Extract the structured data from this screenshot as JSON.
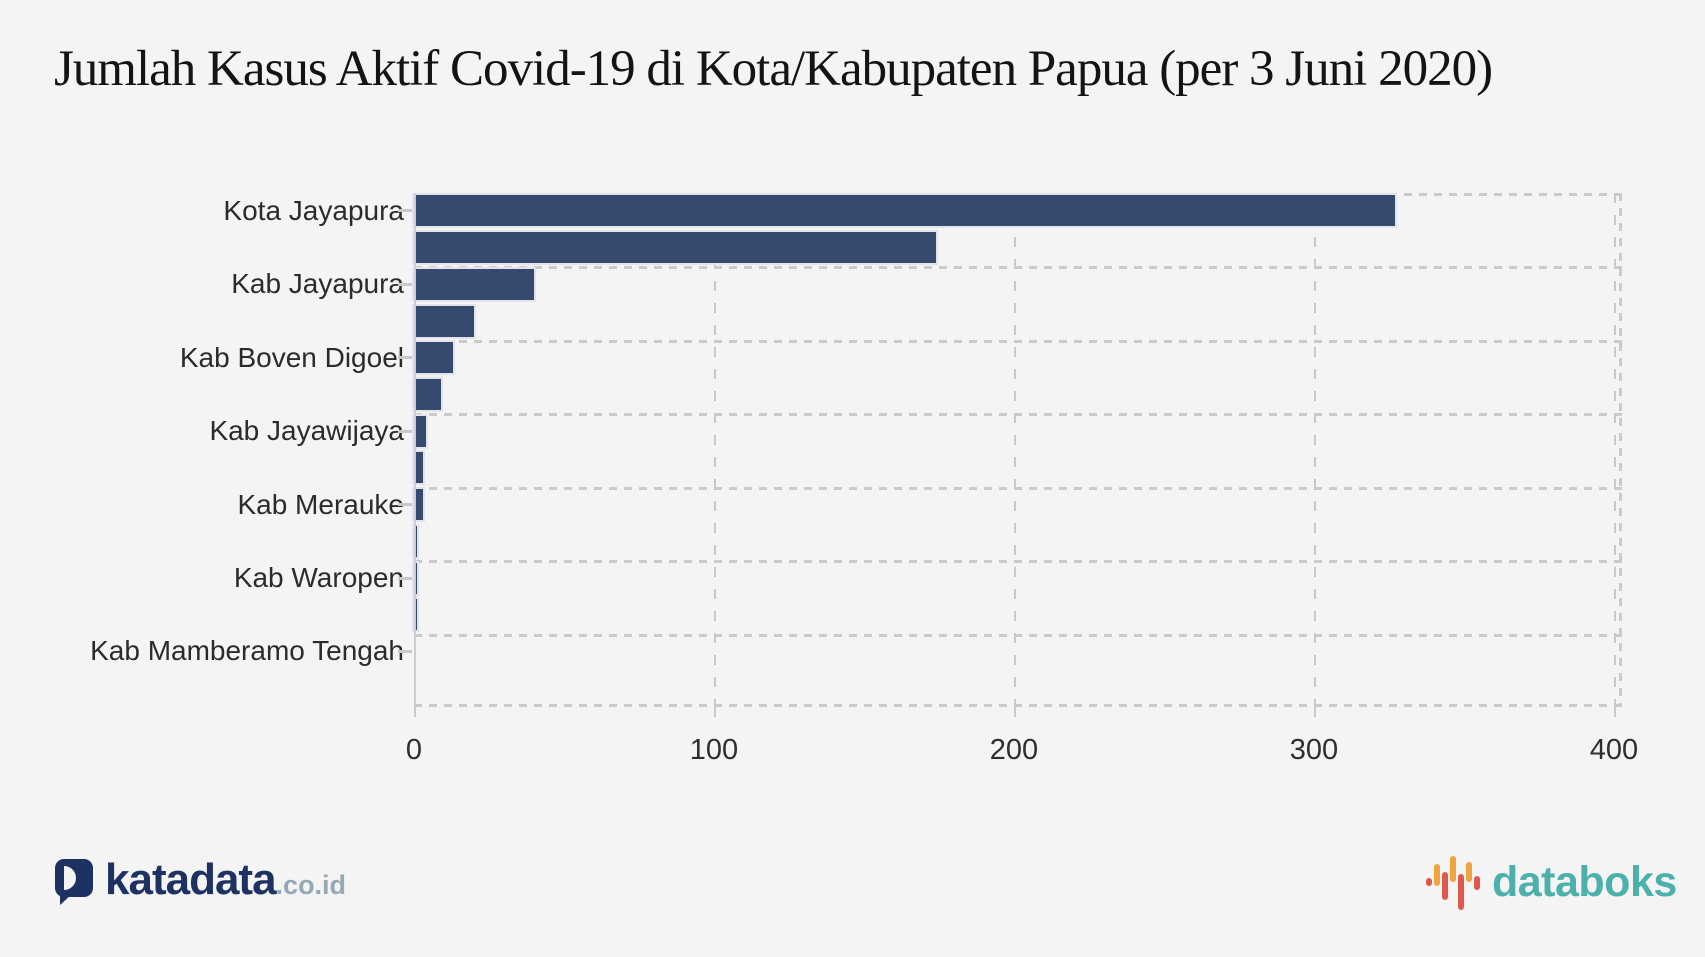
{
  "title": "Jumlah Kasus Aktif Covid-19 di Kota/Kabupaten Papua (per 3 Juni 2020)",
  "chart_data": {
    "type": "bar",
    "orientation": "horizontal",
    "categories": [
      "Kota Jayapura",
      "",
      "Kab Jayapura",
      "",
      "Kab Boven Digoel",
      "",
      "Kab Jayawijaya",
      "",
      "Kab Merauke",
      "",
      "Kab Waropen",
      "",
      "Kab Mamberamo Tengah"
    ],
    "values": [
      327,
      174,
      40,
      20,
      13,
      9,
      4,
      3,
      3,
      1,
      1,
      1,
      0
    ],
    "x_ticks": [
      0,
      100,
      200,
      300,
      400
    ],
    "xlim": [
      0,
      400
    ],
    "xlabel": "",
    "ylabel": "",
    "grid": "dashed-vertical-and-category-separators",
    "label_step": 2,
    "legend": "none"
  },
  "colors": {
    "background": "#f4f4f5",
    "bar": "#36496f",
    "grid": "#c9c9c9",
    "title_text": "#141414",
    "axis_text": "#2b2b2b",
    "katadata_navy": "#1d3260",
    "katadata_suffix_gray": "#94a9b4",
    "databoks_teal": "#4cb1aa",
    "databoks_icon_red": "#e2574c",
    "databoks_icon_orange": "#f0a43e"
  },
  "footer": {
    "katadata": {
      "text": "katadata",
      "suffix": ".co.id"
    },
    "databoks": {
      "text": "databoks"
    }
  }
}
